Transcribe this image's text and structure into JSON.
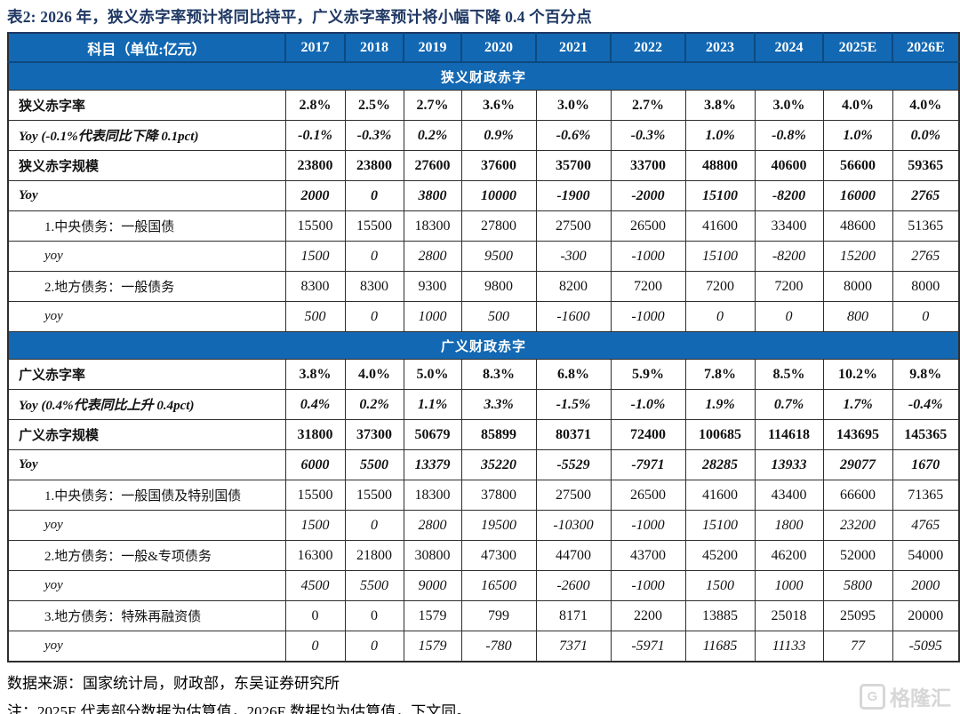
{
  "title": "表2:  2026 年，狭义赤字率预计将同比持平，广义赤字率预计将小幅下降 0.4 个百分点",
  "table": {
    "header": {
      "label": "科目（单位:亿元）",
      "years": [
        "2017",
        "2018",
        "2019",
        "2020",
        "2021",
        "2022",
        "2023",
        "2024",
        "2025E",
        "2026E"
      ]
    },
    "sections": [
      {
        "section_title": "狭义财政赤字",
        "rows": [
          {
            "label": "狭义赤字率",
            "style": "bold",
            "values": [
              "2.8%",
              "2.5%",
              "2.7%",
              "3.6%",
              "3.0%",
              "2.7%",
              "3.8%",
              "3.0%",
              "4.0%",
              "4.0%"
            ]
          },
          {
            "label": "Yoy (-0.1%代表同比下降 0.1pct)",
            "style": "bold-italic",
            "values": [
              "-0.1%",
              "-0.3%",
              "0.2%",
              "0.9%",
              "-0.6%",
              "-0.3%",
              "1.0%",
              "-0.8%",
              "1.0%",
              "0.0%"
            ]
          },
          {
            "label": "狭义赤字规模",
            "style": "bold",
            "values": [
              "23800",
              "23800",
              "27600",
              "37600",
              "35700",
              "33700",
              "48800",
              "40600",
              "56600",
              "59365"
            ]
          },
          {
            "label": "Yoy",
            "style": "bold-italic",
            "values": [
              "2000",
              "0",
              "3800",
              "10000",
              "-1900",
              "-2000",
              "15100",
              "-8200",
              "16000",
              "2765"
            ]
          },
          {
            "label": "1.中央债务：一般国债",
            "style": "normal",
            "values": [
              "15500",
              "15500",
              "18300",
              "27800",
              "27500",
              "26500",
              "41600",
              "33400",
              "48600",
              "51365"
            ]
          },
          {
            "label": "yoy",
            "style": "italic",
            "values": [
              "1500",
              "0",
              "2800",
              "9500",
              "-300",
              "-1000",
              "15100",
              "-8200",
              "15200",
              "2765"
            ]
          },
          {
            "label": "2.地方债务：一般债务",
            "style": "normal",
            "values": [
              "8300",
              "8300",
              "9300",
              "9800",
              "8200",
              "7200",
              "7200",
              "7200",
              "8000",
              "8000"
            ]
          },
          {
            "label": "yoy",
            "style": "italic",
            "values": [
              "500",
              "0",
              "1000",
              "500",
              "-1600",
              "-1000",
              "0",
              "0",
              "800",
              "0"
            ]
          }
        ]
      },
      {
        "section_title": "广义财政赤字",
        "rows": [
          {
            "label": "广义赤字率",
            "style": "bold",
            "values": [
              "3.8%",
              "4.0%",
              "5.0%",
              "8.3%",
              "6.8%",
              "5.9%",
              "7.8%",
              "8.5%",
              "10.2%",
              "9.8%"
            ]
          },
          {
            "label": "Yoy (0.4%代表同比上升 0.4pct)",
            "style": "bold-italic",
            "values": [
              "0.4%",
              "0.2%",
              "1.1%",
              "3.3%",
              "-1.5%",
              "-1.0%",
              "1.9%",
              "0.7%",
              "1.7%",
              "-0.4%"
            ]
          },
          {
            "label": "广义赤字规模",
            "style": "bold",
            "values": [
              "31800",
              "37300",
              "50679",
              "85899",
              "80371",
              "72400",
              "100685",
              "114618",
              "143695",
              "145365"
            ]
          },
          {
            "label": "Yoy",
            "style": "bold-italic",
            "values": [
              "6000",
              "5500",
              "13379",
              "35220",
              "-5529",
              "-7971",
              "28285",
              "13933",
              "29077",
              "1670"
            ]
          },
          {
            "label": "1.中央债务：一般国债及特别国债",
            "style": "normal",
            "values": [
              "15500",
              "15500",
              "18300",
              "37800",
              "27500",
              "26500",
              "41600",
              "43400",
              "66600",
              "71365"
            ]
          },
          {
            "label": "yoy",
            "style": "italic",
            "values": [
              "1500",
              "0",
              "2800",
              "19500",
              "-10300",
              "-1000",
              "15100",
              "1800",
              "23200",
              "4765"
            ]
          },
          {
            "label": "2.地方债务：一般&专项债务",
            "style": "normal",
            "values": [
              "16300",
              "21800",
              "30800",
              "47300",
              "44700",
              "43700",
              "45200",
              "46200",
              "52000",
              "54000"
            ]
          },
          {
            "label": "yoy",
            "style": "italic",
            "values": [
              "4500",
              "5500",
              "9000",
              "16500",
              "-2600",
              "-1000",
              "1500",
              "1000",
              "5800",
              "2000"
            ]
          },
          {
            "label": "3.地方债务：特殊再融资债",
            "style": "normal",
            "values": [
              "0",
              "0",
              "1579",
              "799",
              "8171",
              "2200",
              "13885",
              "25018",
              "25095",
              "20000"
            ]
          },
          {
            "label": "yoy",
            "style": "italic",
            "values": [
              "0",
              "0",
              "1579",
              "-780",
              "7371",
              "-5971",
              "11685",
              "11133",
              "77",
              "-5095"
            ]
          }
        ]
      }
    ]
  },
  "footer": {
    "source": "数据来源：国家统计局，财政部，东吴证券研究所",
    "note": "注：2025E 代表部分数据为估算值，2026E 数据均为估算值，下文同。"
  },
  "watermark": {
    "icon": "G",
    "text": "格隆汇"
  },
  "colors": {
    "header_blue": "#1268b3",
    "header_separator_blue": "#0d4a80",
    "title_navy": "#1f3864",
    "border_dark": "#2e2e2e",
    "watermark_gray": "#d7d7d7"
  }
}
